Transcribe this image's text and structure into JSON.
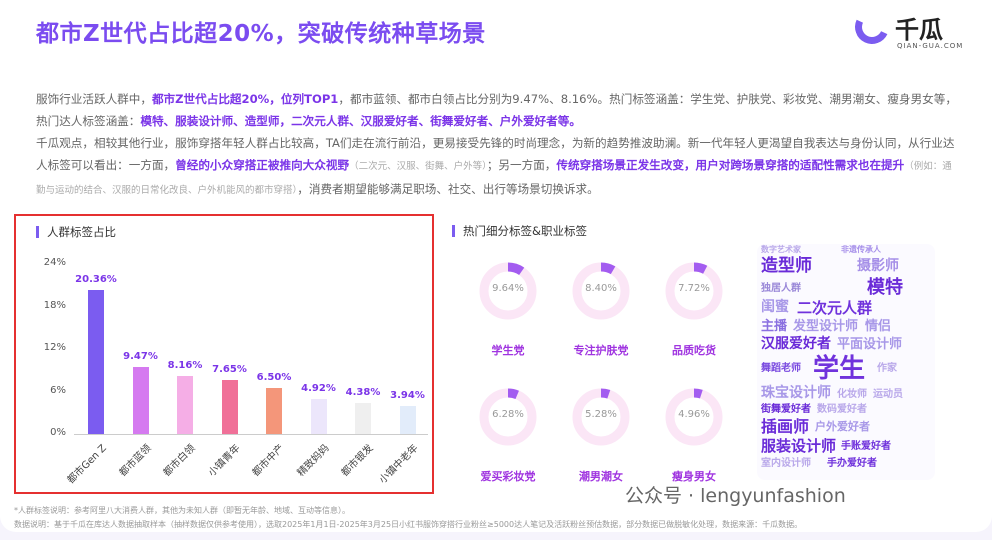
{
  "title": "都市Z世代占比超20%，突破传统种草场景",
  "logo": {
    "name": "千瓜",
    "sub": "QIAN-GUA.COM"
  },
  "paragraphs": {
    "p1_a": "服饰行业活跃人群中，",
    "p1_b": "都市Z世代占比超20%，位列TOP1",
    "p1_c": "，都市蓝领、都市白领占比分别为9.47%、8.16%。热门标签涵盖：学生党、护肤党、彩妆党、潮男潮女、瘦身男女等，热门达人标签涵盖：",
    "p1_d": "模特、服装设计师、造型师，二次元人群、汉服爱好者、街舞爱好者、户外爱好者等。",
    "p2_a": "千瓜观点，相较其他行业，服饰穿搭年轻人群占比较高，TA们走在流行前沿，更易接受先锋的时尚理念，为新的趋势推波助澜。新一代年轻人更渴望自我表达与身份认同，从行业达人标签可以看出：一方面，",
    "p2_b": "曾经的小众穿搭正被推向大众视野",
    "p2_c": "（二次元、汉服、街舞、户外等）",
    "p2_d": "；另一方面，",
    "p2_e": "传统穿搭场景正发生改变，用户对跨场景穿搭的适配性需求也在提升",
    "p2_f": "（例如：通勤与运动的结合、汉服的日常化改良、户外机能风的都市穿搭）",
    "p2_g": "，消费者期望能够满足职场、社交、出行等场景切换诉求。"
  },
  "chart_data": {
    "type": "bar",
    "title": "人群标签占比",
    "categories": [
      "都市Gen Z",
      "都市蓝领",
      "都市白领",
      "小镇青年",
      "都市中产",
      "精致妈妈",
      "都市银发",
      "小镇中老年"
    ],
    "values": [
      20.36,
      9.47,
      8.16,
      7.65,
      6.5,
      4.92,
      4.38,
      3.94
    ],
    "labels": [
      "20.36%",
      "9.47%",
      "8.16%",
      "7.65%",
      "6.50%",
      "4.92%",
      "4.38%",
      "3.94%"
    ],
    "colors": [
      "#7b5cf0",
      "#d57af0",
      "#f5aee6",
      "#f07098",
      "#f4967a",
      "#ece6fb",
      "#efefef",
      "#e2ecfa"
    ],
    "yticks": [
      "0%",
      "6%",
      "12%",
      "18%",
      "24%"
    ],
    "ylim": [
      0,
      24
    ]
  },
  "tags": {
    "title": "热门细分标签&职业标签",
    "items": [
      {
        "label": "学生党",
        "value": "9.64%",
        "pct": 9.64
      },
      {
        "label": "专注护肤党",
        "value": "8.40%",
        "pct": 8.4
      },
      {
        "label": "品质吃货",
        "value": "7.72%",
        "pct": 7.72
      },
      {
        "label": "爱买彩妆党",
        "value": "6.28%",
        "pct": 6.28
      },
      {
        "label": "潮男潮女",
        "value": "5.28%",
        "pct": 5.28
      },
      {
        "label": "瘦身男女",
        "value": "4.96%",
        "pct": 4.96
      }
    ]
  },
  "cloud": [
    "数字艺术家",
    "非遗传承人",
    "造型师",
    "摄影师",
    "模特",
    "独居人群",
    "二次元人群",
    "闺蜜",
    "发型设计师",
    "主播",
    "情侣",
    "汉服爱好者",
    "平面设计师",
    "学生",
    "舞蹈老师",
    "作家",
    "珠宝设计师",
    "化妆师",
    "街舞爱好者",
    "数码爱好者",
    "运动员",
    "插画师",
    "户外爱好者",
    "服装设计师",
    "手账爱好者",
    "室内设计师",
    "手办爱好者"
  ],
  "footnotes": {
    "note1": "*人群标签说明：参考阿里八大消费人群，其他为未知人群（即暂无年龄、地域、互动等信息）。",
    "note2": "数据说明：基于千瓜在库达人数据抽取样本（抽样数据仅供参考使用），选取2025年1月1日-2025年3月25日小红书服饰穿搭行业粉丝≥5000达人笔记及活跃粉丝预估数据，部分数据已做脱敏化处理，数据来源：千瓜数据。"
  },
  "watermark": "公众号 · lengyunfashion"
}
